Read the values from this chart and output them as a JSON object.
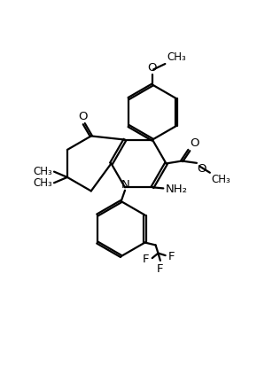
{
  "background_color": "#ffffff",
  "line_color": "#000000",
  "line_width": 1.6,
  "font_size": 8.5,
  "figsize": [
    2.9,
    4.32
  ],
  "dpi": 100,
  "xlim": [
    0,
    10
  ],
  "ylim": [
    0,
    15
  ]
}
